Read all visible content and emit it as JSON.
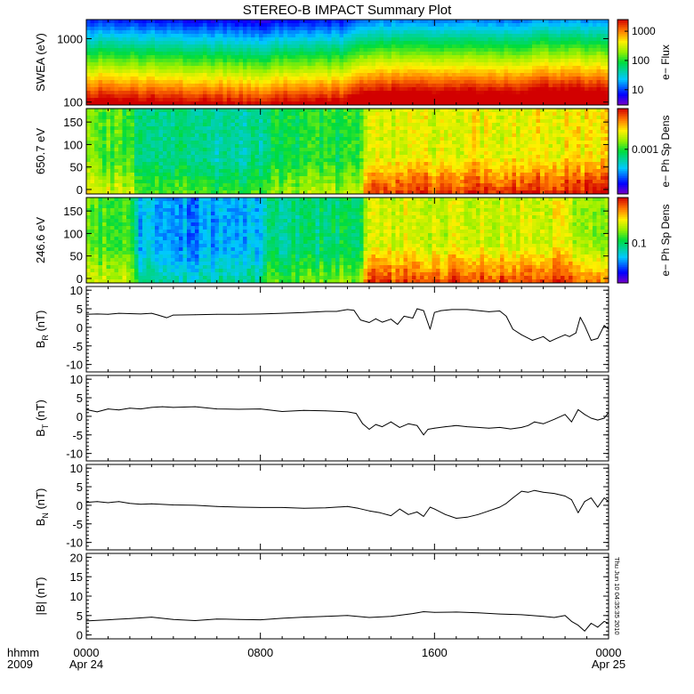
{
  "chart_data": {
    "type": "line",
    "title": "STEREO-B IMPACT Summary Plot",
    "x_axis": {
      "row1_label": "hhmm",
      "row2_label": "2009",
      "ticks": [
        {
          "hhmm": "0000",
          "date": "Apr 24",
          "hour": 0
        },
        {
          "hhmm": "0800",
          "date": "",
          "hour": 8
        },
        {
          "hhmm": "1600",
          "date": "",
          "hour": 16
        },
        {
          "hhmm": "0000",
          "date": "Apr 25",
          "hour": 24
        }
      ],
      "range_hours": [
        0,
        24
      ]
    },
    "timestamp": "Thu Jun 10 04:35:35 2010",
    "panels": [
      {
        "kind": "spectrogram",
        "name": "swea",
        "ylabel": "SWEA (eV)",
        "yscale": "log",
        "ylim": [
          90,
          2000
        ],
        "yticks": [
          {
            "v": 1000,
            "label": "1000"
          },
          {
            "v": 100,
            "label": "100"
          }
        ],
        "colorbar": {
          "label": "e− Flux",
          "scale": "log",
          "range": [
            3,
            2500
          ],
          "ticks": [
            {
              "v": 1000,
              "label": "1000"
            },
            {
              "v": 100,
              "label": "100"
            },
            {
              "v": 10,
              "label": "10"
            }
          ]
        },
        "time_profile": [
          [
            0,
            0.3
          ],
          [
            0.8,
            0.34
          ],
          [
            2.3,
            0.32
          ],
          [
            4,
            0.3
          ],
          [
            6,
            0.28
          ],
          [
            8,
            0.26
          ],
          [
            9,
            0.29
          ],
          [
            10,
            0.3
          ],
          [
            12,
            0.3
          ],
          [
            12.5,
            0.36
          ],
          [
            13,
            0.4
          ],
          [
            16,
            0.4
          ],
          [
            20,
            0.4
          ],
          [
            21.5,
            0.44
          ],
          [
            23,
            0.42
          ],
          [
            24,
            0.42
          ]
        ]
      },
      {
        "kind": "spectrogram",
        "name": "pad-650",
        "ylabel": "650.7 eV",
        "yscale": "linear",
        "ylim": [
          -10,
          180
        ],
        "yticks": [
          {
            "v": 150,
            "label": "150"
          },
          {
            "v": 100,
            "label": "100"
          },
          {
            "v": 50,
            "label": "50"
          },
          {
            "v": 0,
            "label": "0"
          }
        ],
        "colorbar": {
          "label": "e− Ph Sp Dens",
          "scale": "log",
          "range": [
            0.0003,
            0.003
          ],
          "ticks": [
            {
              "v": 0.001,
              "label": "0.001"
            }
          ]
        },
        "base_level": [
          [
            0,
            0.58
          ],
          [
            2,
            0.55
          ],
          [
            2.5,
            0.45
          ],
          [
            5,
            0.4
          ],
          [
            8,
            0.4
          ],
          [
            8.5,
            0.48
          ],
          [
            11,
            0.5
          ],
          [
            12.5,
            0.52
          ],
          [
            13,
            0.7
          ],
          [
            20,
            0.72
          ],
          [
            24,
            0.74
          ]
        ]
      },
      {
        "kind": "spectrogram",
        "name": "pad-246",
        "ylabel": "246.6 eV",
        "yscale": "linear",
        "ylim": [
          -10,
          180
        ],
        "yticks": [
          {
            "v": 150,
            "label": "150"
          },
          {
            "v": 100,
            "label": "100"
          },
          {
            "v": 50,
            "label": "50"
          },
          {
            "v": 0,
            "label": "0"
          }
        ],
        "colorbar": {
          "label": "e− Ph Sp Dens",
          "scale": "log",
          "range": [
            0.03,
            0.4
          ],
          "ticks": [
            {
              "v": 0.1,
              "label": "0.1"
            }
          ]
        },
        "base_level": [
          [
            0,
            0.55
          ],
          [
            2,
            0.52
          ],
          [
            2.5,
            0.3
          ],
          [
            5,
            0.25
          ],
          [
            8,
            0.3
          ],
          [
            8.5,
            0.42
          ],
          [
            11,
            0.45
          ],
          [
            12.5,
            0.48
          ],
          [
            13,
            0.68
          ],
          [
            22,
            0.7
          ],
          [
            22.5,
            0.6
          ],
          [
            24,
            0.6
          ]
        ]
      },
      {
        "kind": "line",
        "name": "br",
        "ylabel": "B",
        "ylabel_sub": "R",
        "ylabel_unit": "(nT)",
        "ylim": [
          -12,
          11
        ],
        "yticks": [
          {
            "v": 10,
            "label": "10"
          },
          {
            "v": 5,
            "label": "5"
          },
          {
            "v": 0,
            "label": "0"
          },
          {
            "v": -5,
            "label": "-5"
          },
          {
            "v": -10,
            "label": "-10"
          }
        ],
        "x": [
          0,
          0.5,
          1,
          1.5,
          2,
          2.5,
          3,
          3.3,
          3.7,
          4,
          5,
          6,
          7,
          8,
          9,
          10,
          11,
          11.5,
          12,
          12.3,
          12.6,
          13,
          13.3,
          13.6,
          14,
          14.3,
          14.6,
          15,
          15.2,
          15.5,
          15.8,
          16,
          16.3,
          16.8,
          17.5,
          18,
          18.5,
          19,
          19.3,
          19.6,
          20,
          20.5,
          21,
          21.3,
          21.6,
          22,
          22.2,
          22.5,
          22.7,
          22.9,
          23.2,
          23.5,
          23.8,
          24
        ],
        "y": [
          3.5,
          3.6,
          3.5,
          3.8,
          3.7,
          3.6,
          3.8,
          3.3,
          2.6,
          3.3,
          3.4,
          3.5,
          3.5,
          3.6,
          3.8,
          4.0,
          4.3,
          4.3,
          4.8,
          4.6,
          2.0,
          1.3,
          2.3,
          1.4,
          2.2,
          0.8,
          3.0,
          2.5,
          5.0,
          4.5,
          -0.5,
          4.0,
          4.5,
          4.8,
          4.8,
          4.5,
          4.2,
          4.4,
          3.0,
          -0.5,
          -2.0,
          -3.5,
          -2.5,
          -3.8,
          -3.0,
          -2.0,
          -2.5,
          -1.5,
          2.7,
          0.5,
          -3.5,
          -3.0,
          0.5,
          -0.5
        ]
      },
      {
        "kind": "line",
        "name": "bt",
        "ylabel": "B",
        "ylabel_sub": "T",
        "ylabel_unit": "(nT)",
        "ylim": [
          -12,
          11
        ],
        "yticks": [
          {
            "v": 10,
            "label": "10"
          },
          {
            "v": 5,
            "label": "5"
          },
          {
            "v": 0,
            "label": "0"
          },
          {
            "v": -5,
            "label": "-5"
          },
          {
            "v": -10,
            "label": "-10"
          }
        ],
        "x": [
          0,
          0.5,
          1,
          1.5,
          2,
          2.5,
          3,
          3.5,
          4,
          5,
          6,
          7,
          8,
          9,
          10,
          11,
          12,
          12.4,
          12.7,
          13,
          13.3,
          13.6,
          14,
          14.4,
          14.8,
          15.2,
          15.5,
          15.7,
          16,
          16.5,
          17,
          17.5,
          18,
          18.5,
          19,
          19.5,
          20,
          20.3,
          20.6,
          21,
          21.5,
          22,
          22.3,
          22.6,
          22.9,
          23.2,
          23.5,
          23.8,
          24
        ],
        "y": [
          1.8,
          1.2,
          2.0,
          1.7,
          2.2,
          2.0,
          2.4,
          2.6,
          2.4,
          2.6,
          2.0,
          1.9,
          2.0,
          1.3,
          1.6,
          1.5,
          1.2,
          0.8,
          -2.0,
          -3.5,
          -2.2,
          -2.8,
          -1.5,
          -3.0,
          -2.0,
          -2.5,
          -5.0,
          -3.5,
          -3.2,
          -2.8,
          -2.5,
          -2.8,
          -3.0,
          -3.2,
          -3.0,
          -3.4,
          -3.0,
          -2.5,
          -1.5,
          -2.0,
          -0.8,
          0.5,
          -1.5,
          1.8,
          0.5,
          -0.5,
          -1.0,
          -0.5,
          1.0
        ]
      },
      {
        "kind": "line",
        "name": "bn",
        "ylabel": "B",
        "ylabel_sub": "N",
        "ylabel_unit": "(nT)",
        "ylim": [
          -12,
          11
        ],
        "yticks": [
          {
            "v": 10,
            "label": "10"
          },
          {
            "v": 5,
            "label": "5"
          },
          {
            "v": 0,
            "label": "0"
          },
          {
            "v": -5,
            "label": "-5"
          },
          {
            "v": -10,
            "label": "-10"
          }
        ],
        "x": [
          0,
          0.5,
          1,
          1.5,
          2,
          2.5,
          3,
          4,
          5,
          6,
          7,
          8,
          9,
          10,
          11,
          12,
          12.5,
          13,
          13.5,
          14,
          14.4,
          14.8,
          15.2,
          15.5,
          15.8,
          16,
          16.5,
          17,
          17.5,
          18,
          18.5,
          19,
          19.3,
          19.6,
          20,
          20.3,
          20.6,
          21,
          21.5,
          22,
          22.3,
          22.6,
          22.9,
          23.2,
          23.5,
          23.8,
          24
        ],
        "y": [
          0.8,
          1.0,
          0.7,
          1.0,
          0.5,
          0.3,
          0.4,
          0.1,
          0.0,
          -0.3,
          -0.5,
          -0.6,
          -0.6,
          -0.8,
          -0.7,
          -0.3,
          -0.8,
          -1.5,
          -2.0,
          -2.8,
          -1.0,
          -2.5,
          -1.8,
          -3.0,
          -0.5,
          -1.0,
          -2.5,
          -3.5,
          -3.2,
          -2.5,
          -1.5,
          -0.5,
          0.5,
          2.0,
          3.8,
          3.5,
          4.0,
          3.5,
          3.2,
          2.5,
          1.5,
          -2.0,
          1.0,
          2.0,
          -0.5,
          2.0,
          1.0
        ]
      },
      {
        "kind": "line",
        "name": "bmag",
        "ylabel": "|B| (nT)",
        "ylim": [
          -1,
          21
        ],
        "yticks": [
          {
            "v": 20,
            "label": "20"
          },
          {
            "v": 15,
            "label": "15"
          },
          {
            "v": 10,
            "label": "10"
          },
          {
            "v": 5,
            "label": "5"
          },
          {
            "v": 0,
            "label": "0"
          }
        ],
        "x": [
          0,
          1,
          2,
          3,
          4,
          5,
          6,
          7,
          8,
          9,
          10,
          11,
          12,
          13,
          14,
          15,
          15.5,
          16,
          17,
          18,
          19,
          20,
          21,
          21.5,
          22,
          22.3,
          22.6,
          22.9,
          23.2,
          23.5,
          23.8,
          24
        ],
        "y": [
          3.6,
          3.9,
          4.2,
          4.6,
          4.0,
          3.7,
          4.1,
          4.0,
          3.9,
          4.3,
          4.6,
          4.8,
          5.0,
          4.5,
          4.8,
          5.5,
          6.0,
          5.8,
          5.9,
          5.7,
          5.4,
          5.2,
          4.8,
          4.5,
          5.0,
          3.5,
          2.5,
          1.0,
          3.0,
          2.0,
          3.5,
          3.0
        ]
      }
    ]
  }
}
